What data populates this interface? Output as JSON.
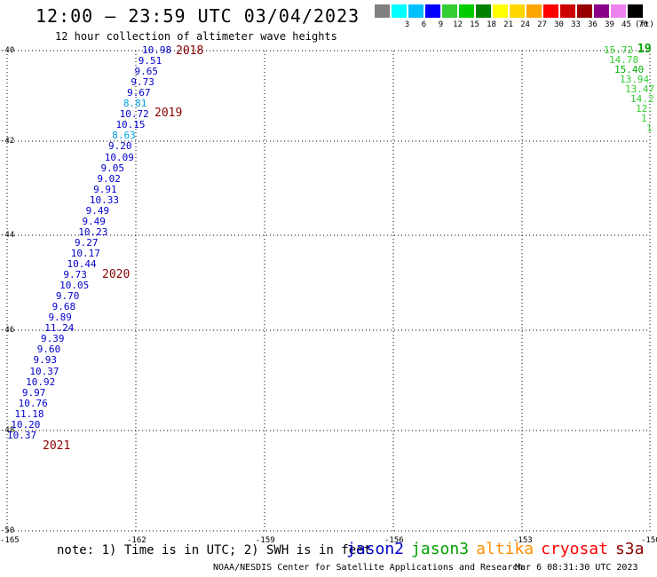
{
  "header": {
    "title": "12:00 — 23:59 UTC 03/04/2023",
    "subtitle": "12 hour collection of altimeter wave heights"
  },
  "colorbar": {
    "unit": "(ft)",
    "entries": [
      {
        "label": "",
        "color": "#808080"
      },
      {
        "label": "3",
        "color": "#00ffff"
      },
      {
        "label": "6",
        "color": "#00bfff"
      },
      {
        "label": "9",
        "color": "#0000ff"
      },
      {
        "label": "12",
        "color": "#32cd32"
      },
      {
        "label": "15",
        "color": "#00cc00"
      },
      {
        "label": "18",
        "color": "#008000"
      },
      {
        "label": "21",
        "color": "#ffff00"
      },
      {
        "label": "24",
        "color": "#ffd700"
      },
      {
        "label": "27",
        "color": "#ffa500"
      },
      {
        "label": "30",
        "color": "#ff0000"
      },
      {
        "label": "33",
        "color": "#cc0000"
      },
      {
        "label": "36",
        "color": "#990000"
      },
      {
        "label": "39",
        "color": "#8b008b"
      },
      {
        "label": "45",
        "color": "#ee82ee"
      },
      {
        "label": "70",
        "color": "#000000"
      }
    ]
  },
  "axes": {
    "lat_labels": [
      "-40",
      "-42",
      "-44",
      "-46",
      "-48",
      "-50"
    ],
    "lon_labels": [
      "-165",
      "-162",
      "-159",
      "-156",
      "-153",
      "-150"
    ]
  },
  "tracks": {
    "left": [
      {
        "v": "10.98",
        "c": "#0000cd"
      },
      {
        "v": "9.51",
        "c": "#0000cd"
      },
      {
        "v": "9.65",
        "c": "#0000cd"
      },
      {
        "v": "9.73",
        "c": "#0000cd"
      },
      {
        "v": "9.67",
        "c": "#0000cd"
      },
      {
        "v": "8.81",
        "c": "#00a0e0"
      },
      {
        "v": "10.72",
        "c": "#0000cd"
      },
      {
        "v": "10.15",
        "c": "#0000cd"
      },
      {
        "v": "8.63",
        "c": "#00a0e0"
      },
      {
        "v": "9.20",
        "c": "#0000cd"
      },
      {
        "v": "10.09",
        "c": "#0000cd"
      },
      {
        "v": "9.05",
        "c": "#0000cd"
      },
      {
        "v": "9.02",
        "c": "#0000cd"
      },
      {
        "v": "9.91",
        "c": "#0000cd"
      },
      {
        "v": "10.33",
        "c": "#0000cd"
      },
      {
        "v": "9.49",
        "c": "#0000cd"
      },
      {
        "v": "9.49",
        "c": "#0000cd"
      },
      {
        "v": "10.23",
        "c": "#0000cd"
      },
      {
        "v": "9.27",
        "c": "#0000cd"
      },
      {
        "v": "10.17",
        "c": "#0000cd"
      },
      {
        "v": "10.44",
        "c": "#0000cd"
      },
      {
        "v": "9.73",
        "c": "#0000cd"
      },
      {
        "v": "10.05",
        "c": "#0000cd"
      },
      {
        "v": "9.70",
        "c": "#0000cd"
      },
      {
        "v": "9.68",
        "c": "#0000cd"
      },
      {
        "v": "9.89",
        "c": "#0000cd"
      },
      {
        "v": "11.24",
        "c": "#0000cd"
      },
      {
        "v": "9.39",
        "c": "#0000cd"
      },
      {
        "v": "9.60",
        "c": "#0000cd"
      },
      {
        "v": "9.93",
        "c": "#0000cd"
      },
      {
        "v": "10.37",
        "c": "#0000cd"
      },
      {
        "v": "10.92",
        "c": "#0000cd"
      },
      {
        "v": "9.97",
        "c": "#0000cd"
      },
      {
        "v": "10.76",
        "c": "#0000cd"
      },
      {
        "v": "11.18",
        "c": "#0000cd"
      },
      {
        "v": "10.20",
        "c": "#0000cd"
      },
      {
        "v": "10.37",
        "c": "#0000cd"
      }
    ],
    "right": [
      {
        "v": "15.72",
        "c": "#32cd32"
      },
      {
        "v": "14.78",
        "c": "#32cd32"
      },
      {
        "v": "15.40",
        "c": "#00b000"
      },
      {
        "v": "13.94",
        "c": "#32cd32"
      },
      {
        "v": "13.47",
        "c": "#32cd32"
      },
      {
        "v": "14.2",
        "c": "#32cd32"
      },
      {
        "v": "12.",
        "c": "#32cd32"
      },
      {
        "v": "1",
        "c": "#32cd32"
      },
      {
        "v": "1",
        "c": "#32cd32"
      }
    ],
    "right_year": "19"
  },
  "time_labels": [
    "2018",
    "2019",
    "2020",
    "2021"
  ],
  "footer": {
    "note": "note: 1) Time is in UTC; 2) SWH is in feet",
    "missions": [
      {
        "name": "jason2",
        "color": "#0000cd"
      },
      {
        "name": "jason3",
        "color": "#00a000"
      },
      {
        "name": "altika",
        "color": "#ff8c00"
      },
      {
        "name": "cryosat",
        "color": "#ff0000"
      },
      {
        "name": "s3a",
        "color": "#8b0000"
      }
    ],
    "credit": "NOAA/NESDIS Center for Satellite Applications and Research",
    "timestamp": "Mar  6 08:31:30 UTC 2023"
  }
}
